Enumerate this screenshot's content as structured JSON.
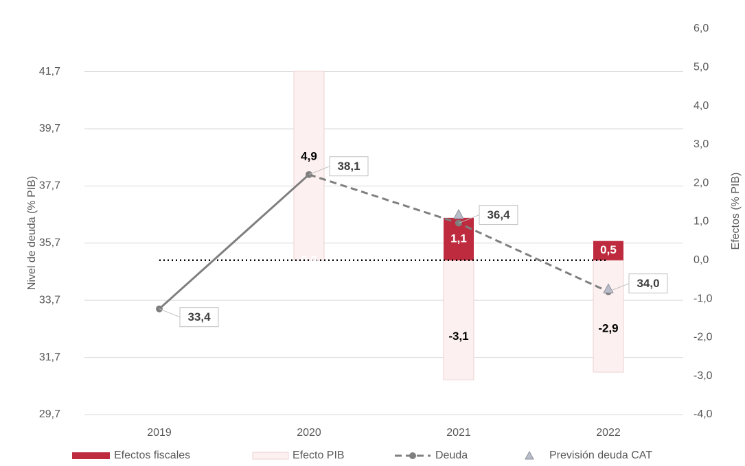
{
  "chart_data": {
    "type": "bar-line",
    "y_label": "Nivel de deuda (% PIB)",
    "y2_label": "Efectos (% PIB)",
    "categories": [
      "2019",
      "2020",
      "2021",
      "2022"
    ],
    "ylim": [
      29.7,
      43.2
    ],
    "yticks": [
      {
        "value": 29.7,
        "label": "29,7"
      },
      {
        "value": 31.7,
        "label": "31,7"
      },
      {
        "value": 33.7,
        "label": "33,7"
      },
      {
        "value": 35.7,
        "label": "35,7"
      },
      {
        "value": 37.7,
        "label": "37,7"
      },
      {
        "value": 39.7,
        "label": "39,7"
      },
      {
        "value": 41.7,
        "label": "41,7"
      }
    ],
    "y2lim": [
      -4,
      6
    ],
    "y2ticks": [
      {
        "value": -4,
        "label": "-4,0"
      },
      {
        "value": -3,
        "label": "-3,0"
      },
      {
        "value": -2,
        "label": "-2,0"
      },
      {
        "value": -1,
        "label": "-1,0"
      },
      {
        "value": 0,
        "label": "0,0"
      },
      {
        "value": 1,
        "label": "1,0"
      },
      {
        "value": 2,
        "label": "2,0"
      },
      {
        "value": 3,
        "label": "3,0"
      },
      {
        "value": 4,
        "label": "4,0"
      },
      {
        "value": 5,
        "label": "5,0"
      },
      {
        "value": 6,
        "label": "6,0"
      }
    ],
    "grid": true,
    "legend": "bottom",
    "series": [
      {
        "name": "Efectos fiscales",
        "kind": "bar",
        "axis": "y2",
        "color": "#be2a3e",
        "values": [
          null,
          0.0,
          1.1,
          0.5
        ],
        "value_labels": [
          null,
          "0,0",
          "1,1",
          "0,5"
        ]
      },
      {
        "name": "Efecto PIB",
        "kind": "bar",
        "axis": "y2",
        "color": "#fdf0f0",
        "values": [
          null,
          4.9,
          -3.1,
          -2.9
        ],
        "value_labels": [
          null,
          "4,9",
          "-3,1",
          "-2,9"
        ]
      },
      {
        "name": "Deuda",
        "kind": "line",
        "axis": "y",
        "color": "#7f7f7f",
        "dash_from_index": 1,
        "values": [
          33.4,
          38.1,
          36.4,
          34.0
        ],
        "value_labels": [
          "33,4",
          "38,1",
          "36,4",
          "34,0"
        ]
      },
      {
        "name": "Previsión deuda CAT",
        "kind": "marker",
        "axis": "y",
        "color": "#b9bdc9",
        "values": [
          null,
          null,
          36.7,
          34.1
        ]
      }
    ]
  }
}
